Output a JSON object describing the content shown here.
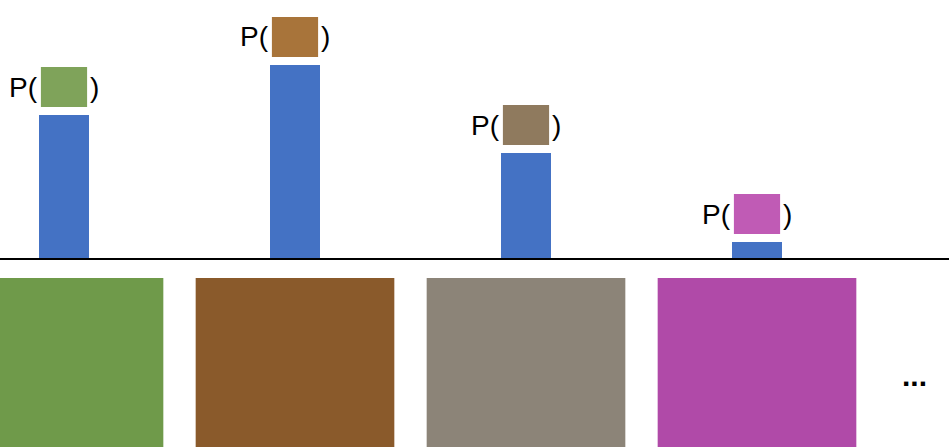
{
  "chart_data": {
    "type": "bar",
    "categories": [
      null,
      null,
      null,
      null
    ],
    "values": [
      143,
      193,
      105,
      16
    ],
    "color": "#4472c4",
    "ylim": [
      0,
      193
    ],
    "tick_labels": false,
    "grid": false,
    "annotations": [
      {
        "category": 0,
        "text": [
          "P(",
          ")"
        ]
      },
      {
        "category": 1,
        "text": [
          "P(",
          ")"
        ]
      },
      {
        "category": 2,
        "text": [
          "P(",
          ")"
        ]
      },
      {
        "category": 3,
        "text": [
          "P(",
          ")"
        ]
      },
      {
        "text": "..."
      }
    ]
  }
}
